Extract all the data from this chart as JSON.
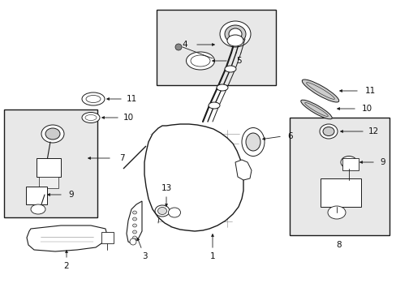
{
  "fig_width": 4.89,
  "fig_height": 3.6,
  "dpi": 100,
  "bg_color": "#ffffff",
  "image_b64": ""
}
